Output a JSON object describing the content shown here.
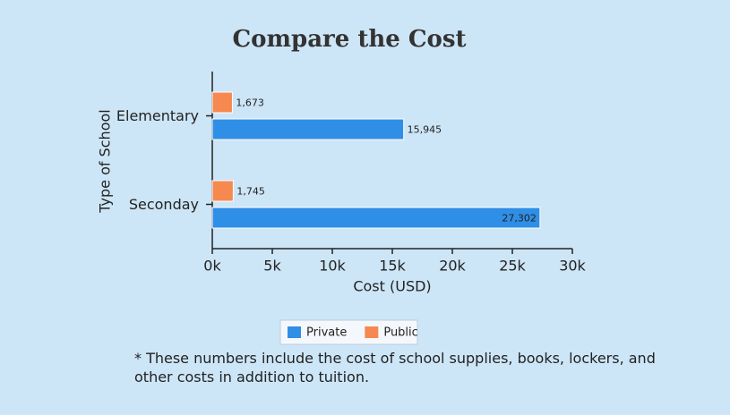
{
  "chart_data": {
    "type": "bar",
    "orientation": "horizontal",
    "title": "Compare the Cost",
    "x_label": "Cost (USD)",
    "y_label": "Type of School",
    "categories": [
      "Elementary",
      "Seconday"
    ],
    "series": [
      {
        "name": "Private",
        "color": "#2f8ee6",
        "values": [
          15945,
          27302
        ],
        "value_labels": [
          "15,945",
          "27,302"
        ]
      },
      {
        "name": "Public",
        "color": "#f5894f",
        "values": [
          1673,
          1745
        ],
        "value_labels": [
          "1,673",
          "1,745"
        ]
      }
    ],
    "xlim": [
      0,
      30000
    ],
    "xticks": [
      {
        "value": 0,
        "label": "0k"
      },
      {
        "value": 5000,
        "label": "5k"
      },
      {
        "value": 10000,
        "label": "10k"
      },
      {
        "value": 15000,
        "label": "15k"
      },
      {
        "value": 20000,
        "label": "20k"
      },
      {
        "value": 25000,
        "label": "25k"
      },
      {
        "value": 30000,
        "label": "30k"
      }
    ],
    "grid": false,
    "legend": "bottom",
    "footnote": "* These numbers include the cost of school supplies, books, lockers, and other costs in addition to tuition."
  }
}
